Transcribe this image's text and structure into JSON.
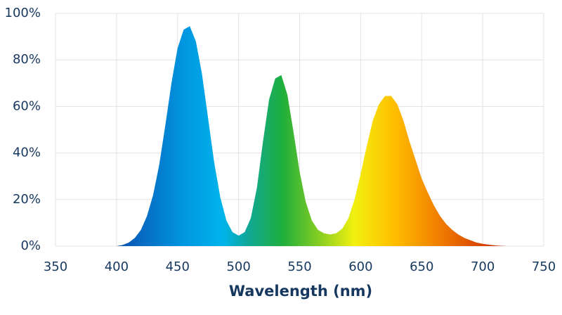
{
  "chart_data": {
    "type": "area",
    "xlabel": "Wavelength (nm)",
    "x": [
      400,
      405,
      410,
      415,
      420,
      425,
      430,
      435,
      440,
      445,
      450,
      455,
      460,
      465,
      470,
      475,
      480,
      485,
      490,
      495,
      500,
      505,
      510,
      515,
      520,
      525,
      530,
      535,
      540,
      545,
      550,
      555,
      560,
      565,
      570,
      575,
      580,
      585,
      590,
      595,
      600,
      605,
      610,
      615,
      620,
      625,
      630,
      635,
      640,
      645,
      650,
      655,
      660,
      665,
      670,
      675,
      680,
      685,
      690,
      695,
      700,
      705,
      710,
      715,
      720
    ],
    "values": [
      0,
      0.5,
      1.5,
      3.5,
      7,
      13,
      22,
      35,
      52,
      70,
      85,
      93,
      94.5,
      88,
      74,
      55,
      36,
      21,
      11,
      6,
      4.5,
      6,
      12,
      25,
      45,
      63,
      72,
      73.5,
      65,
      49,
      32,
      19,
      11,
      7,
      5.5,
      5,
      5.5,
      7.5,
      12,
      20,
      31,
      43,
      54,
      61,
      64.5,
      64.5,
      61,
      54,
      45,
      37,
      29,
      23,
      17.5,
      13,
      9.5,
      7,
      5,
      3.5,
      2.5,
      1.5,
      1,
      0.6,
      0.3,
      0.1,
      0
    ],
    "xlim": [
      350,
      750
    ],
    "xticks": [
      350,
      400,
      450,
      500,
      550,
      600,
      650,
      700,
      750
    ],
    "ylim": [
      0,
      100
    ],
    "yticks": [
      {
        "value": 0,
        "label": "0%"
      },
      {
        "value": 20,
        "label": "20%"
      },
      {
        "value": 40,
        "label": "40%"
      },
      {
        "value": 60,
        "label": "60%"
      },
      {
        "value": 80,
        "label": "80%"
      },
      {
        "value": 100,
        "label": "100%"
      }
    ],
    "grid": true
  }
}
